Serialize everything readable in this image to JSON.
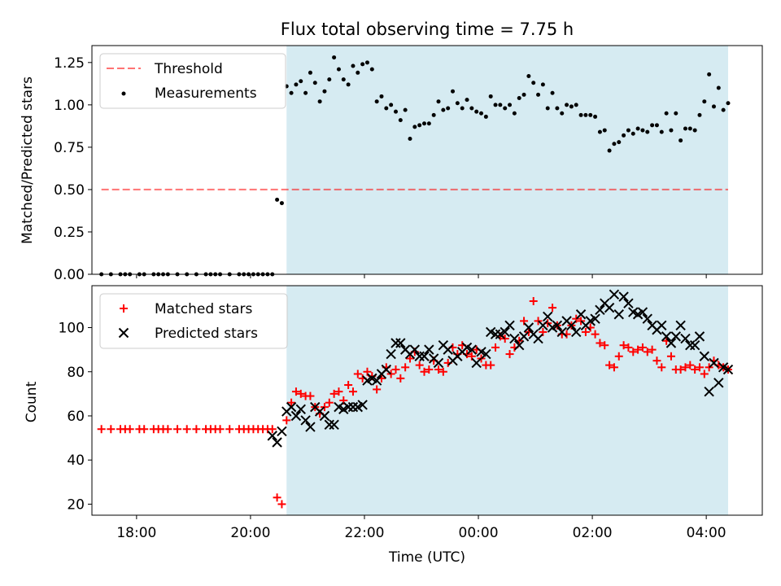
{
  "title": "Flux total observing time = 7.75 h",
  "colors": {
    "shade": "#add8e6",
    "threshold": "#ff0000",
    "measurement": "#000000",
    "matched": "#ff0000",
    "predicted": "#000000"
  },
  "chart_data": [
    {
      "type": "scatter",
      "panel": "top",
      "ylabel": "Matched/Predicted stars",
      "xlim": [
        "17:13",
        "04:59"
      ],
      "ylim": [
        0,
        1.35
      ],
      "yticks": [
        0.0,
        0.25,
        0.5,
        0.75,
        1.0,
        1.25
      ],
      "yticklabels": [
        "0.00",
        "0.25",
        "0.50",
        "0.75",
        "1.00",
        "1.25"
      ],
      "observing_window": [
        "20:38",
        "04:23"
      ],
      "threshold": {
        "label": "Threshold",
        "value": 0.5,
        "x": [
          "17:23",
          "04:23"
        ],
        "style": "dashed"
      },
      "legend": {
        "position": "top-left",
        "entries": [
          "Threshold",
          "Measurements"
        ]
      },
      "series": [
        {
          "name": "Measurements",
          "x": [
            "17:23",
            "17:33",
            "17:43",
            "17:48",
            "17:53",
            "18:03",
            "18:08",
            "18:18",
            "18:23",
            "18:28",
            "18:33",
            "18:43",
            "18:53",
            "19:03",
            "19:13",
            "19:18",
            "19:23",
            "19:28",
            "19:38",
            "19:48",
            "19:53",
            "19:58",
            "20:03",
            "20:08",
            "20:13",
            "20:18",
            "20:23",
            "20:28",
            "20:33",
            "20:38",
            "20:43",
            "20:48",
            "20:53",
            "20:58",
            "21:03",
            "21:08",
            "21:13",
            "21:18",
            "21:23",
            "21:28",
            "21:33",
            "21:38",
            "21:43",
            "21:48",
            "21:53",
            "21:58",
            "22:03",
            "22:08",
            "22:13",
            "22:18",
            "22:23",
            "22:28",
            "22:33",
            "22:38",
            "22:43",
            "22:48",
            "22:53",
            "22:58",
            "23:03",
            "23:08",
            "23:13",
            "23:18",
            "23:23",
            "23:28",
            "23:33",
            "23:38",
            "23:43",
            "23:48",
            "23:53",
            "23:58",
            "00:03",
            "00:08",
            "00:13",
            "00:18",
            "00:23",
            "00:28",
            "00:33",
            "00:38",
            "00:43",
            "00:48",
            "00:53",
            "00:58",
            "01:03",
            "01:08",
            "01:13",
            "01:18",
            "01:23",
            "01:28",
            "01:33",
            "01:38",
            "01:43",
            "01:48",
            "01:53",
            "01:58",
            "02:03",
            "02:08",
            "02:13",
            "02:18",
            "02:23",
            "02:28",
            "02:33",
            "02:38",
            "02:43",
            "02:48",
            "02:53",
            "02:58",
            "03:03",
            "03:08",
            "03:13",
            "03:18",
            "03:23",
            "03:28",
            "03:33",
            "03:38",
            "03:43",
            "03:48",
            "03:53",
            "03:58",
            "04:03",
            "04:08",
            "04:13",
            "04:18",
            "04:23"
          ],
          "y": [
            0,
            0,
            0,
            0,
            0,
            0,
            0,
            0,
            0,
            0,
            0,
            0,
            0,
            0,
            0,
            0,
            0,
            0,
            0,
            0,
            0,
            0,
            0,
            0,
            0,
            0,
            0,
            0.44,
            0.42,
            1.11,
            1.07,
            1.12,
            1.14,
            1.07,
            1.19,
            1.13,
            1.02,
            1.08,
            1.15,
            1.28,
            1.21,
            1.15,
            1.12,
            1.23,
            1.19,
            1.24,
            1.25,
            1.21,
            1.02,
            1.05,
            0.98,
            1.0,
            0.96,
            0.91,
            0.97,
            0.8,
            0.87,
            0.88,
            0.89,
            0.89,
            0.94,
            1.02,
            0.97,
            0.98,
            1.08,
            1.01,
            0.98,
            1.03,
            0.98,
            0.96,
            0.95,
            0.93,
            1.05,
            1.0,
            1.0,
            0.98,
            1.0,
            0.95,
            1.04,
            1.06,
            1.17,
            1.13,
            1.06,
            1.12,
            0.98,
            1.07,
            0.98,
            0.95,
            1.0,
            0.99,
            1.0,
            0.94,
            0.94,
            0.94,
            0.93,
            0.84,
            0.85,
            0.73,
            0.77,
            0.78,
            0.82,
            0.85,
            0.83,
            0.86,
            0.85,
            0.84,
            0.88,
            0.88,
            0.84,
            0.95,
            0.85,
            0.95,
            0.79,
            0.86,
            0.86,
            0.85,
            0.94,
            1.02,
            1.18,
            0.99,
            1.1,
            0.97,
            1.01
          ]
        }
      ]
    },
    {
      "type": "scatter",
      "panel": "bottom",
      "xlabel": "Time (UTC)",
      "ylabel": "Count",
      "xlim": [
        "17:13",
        "04:59"
      ],
      "ylim": [
        15,
        119
      ],
      "yticks": [
        20,
        40,
        60,
        80,
        100
      ],
      "xticks": [
        "18:00",
        "20:00",
        "22:00",
        "00:00",
        "02:00",
        "04:00"
      ],
      "observing_window": [
        "20:38",
        "04:23"
      ],
      "legend": {
        "position": "top-left",
        "entries": [
          "Matched stars",
          "Predicted stars"
        ]
      },
      "series": [
        {
          "name": "Matched stars",
          "marker": "plus",
          "x": [
            "17:23",
            "17:33",
            "17:43",
            "17:48",
            "17:53",
            "18:03",
            "18:08",
            "18:18",
            "18:23",
            "18:28",
            "18:33",
            "18:43",
            "18:53",
            "19:03",
            "19:13",
            "19:18",
            "19:23",
            "19:28",
            "19:38",
            "19:48",
            "19:53",
            "19:58",
            "20:03",
            "20:08",
            "20:13",
            "20:18",
            "20:23",
            "20:28",
            "20:33",
            "20:38",
            "20:43",
            "20:48",
            "20:53",
            "20:58",
            "21:03",
            "21:08",
            "21:13",
            "21:18",
            "21:23",
            "21:28",
            "21:33",
            "21:38",
            "21:43",
            "21:48",
            "21:53",
            "21:58",
            "22:03",
            "22:08",
            "22:13",
            "22:18",
            "22:23",
            "22:28",
            "22:33",
            "22:38",
            "22:43",
            "22:48",
            "22:53",
            "22:58",
            "23:03",
            "23:08",
            "23:13",
            "23:18",
            "23:23",
            "23:28",
            "23:33",
            "23:38",
            "23:43",
            "23:48",
            "23:53",
            "23:58",
            "00:03",
            "00:08",
            "00:13",
            "00:18",
            "00:23",
            "00:28",
            "00:33",
            "00:38",
            "00:43",
            "00:48",
            "00:53",
            "00:58",
            "01:03",
            "01:08",
            "01:13",
            "01:18",
            "01:23",
            "01:28",
            "01:33",
            "01:38",
            "01:43",
            "01:48",
            "01:53",
            "01:58",
            "02:03",
            "02:08",
            "02:13",
            "02:18",
            "02:23",
            "02:28",
            "02:33",
            "02:38",
            "02:43",
            "02:48",
            "02:53",
            "02:58",
            "03:03",
            "03:08",
            "03:13",
            "03:18",
            "03:23",
            "03:28",
            "03:33",
            "03:38",
            "03:43",
            "03:48",
            "03:53",
            "03:58",
            "04:03",
            "04:08",
            "04:13",
            "04:18",
            "04:23"
          ],
          "y": [
            54,
            54,
            54,
            54,
            54,
            54,
            54,
            54,
            54,
            54,
            54,
            54,
            54,
            54,
            54,
            54,
            54,
            54,
            54,
            54,
            54,
            54,
            54,
            54,
            54,
            54,
            54,
            23,
            20,
            58,
            66,
            71,
            70,
            69,
            69,
            64,
            61,
            64,
            66,
            70,
            71,
            67,
            74,
            71,
            79,
            77,
            80,
            78,
            72,
            77,
            82,
            79,
            81,
            77,
            82,
            86,
            89,
            83,
            80,
            81,
            85,
            81,
            80,
            84,
            91,
            88,
            92,
            88,
            87,
            90,
            86,
            83,
            83,
            91,
            96,
            95,
            88,
            91,
            94,
            103,
            98,
            112,
            103,
            98,
            102,
            109,
            101,
            97,
            97,
            101,
            104,
            103,
            98,
            100,
            97,
            93,
            92,
            83,
            82,
            87,
            92,
            91,
            89,
            90,
            91,
            89,
            90,
            85,
            82,
            94,
            87,
            81,
            81,
            82,
            83,
            81,
            82,
            79,
            82,
            85,
            83,
            82,
            81
          ]
        },
        {
          "name": "Predicted stars",
          "marker": "x",
          "x": [
            "20:23",
            "20:28",
            "20:33",
            "20:38",
            "20:43",
            "20:48",
            "20:53",
            "20:58",
            "21:03",
            "21:08",
            "21:13",
            "21:18",
            "21:23",
            "21:28",
            "21:33",
            "21:38",
            "21:43",
            "21:48",
            "21:53",
            "21:58",
            "22:03",
            "22:08",
            "22:13",
            "22:18",
            "22:23",
            "22:28",
            "22:33",
            "22:38",
            "22:43",
            "22:48",
            "22:53",
            "22:58",
            "23:03",
            "23:08",
            "23:13",
            "23:18",
            "23:23",
            "23:28",
            "23:33",
            "23:38",
            "23:43",
            "23:48",
            "23:53",
            "23:58",
            "00:03",
            "00:08",
            "00:13",
            "00:18",
            "00:23",
            "00:28",
            "00:33",
            "00:38",
            "00:43",
            "00:48",
            "00:53",
            "00:58",
            "01:03",
            "01:08",
            "01:13",
            "01:18",
            "01:23",
            "01:28",
            "01:33",
            "01:38",
            "01:43",
            "01:48",
            "01:53",
            "01:58",
            "02:03",
            "02:08",
            "02:13",
            "02:18",
            "02:23",
            "02:28",
            "02:33",
            "02:38",
            "02:43",
            "02:48",
            "02:53",
            "02:58",
            "03:03",
            "03:08",
            "03:13",
            "03:18",
            "03:23",
            "03:28",
            "03:33",
            "03:38",
            "03:43",
            "03:48",
            "03:53",
            "03:58",
            "04:03",
            "04:08",
            "04:13",
            "04:18",
            "04:23"
          ],
          "y": [
            51,
            48,
            53,
            62,
            64,
            60,
            63,
            58,
            55,
            64,
            62,
            60,
            56,
            56,
            64,
            63,
            64,
            64,
            64,
            65,
            76,
            77,
            76,
            79,
            81,
            88,
            93,
            93,
            90,
            88,
            90,
            87,
            87,
            90,
            86,
            84,
            92,
            90,
            85,
            87,
            89,
            91,
            90,
            84,
            89,
            88,
            98,
            97,
            97,
            98,
            101,
            95,
            92,
            96,
            100,
            97,
            95,
            101,
            105,
            100,
            101,
            98,
            103,
            101,
            98,
            106,
            101,
            103,
            104,
            108,
            111,
            109,
            115,
            106,
            114,
            111,
            107,
            106,
            107,
            104,
            101,
            99,
            101,
            96,
            93,
            96,
            101,
            95,
            92,
            92,
            96,
            87,
            71,
            84,
            75,
            82,
            81
          ]
        }
      ]
    }
  ]
}
